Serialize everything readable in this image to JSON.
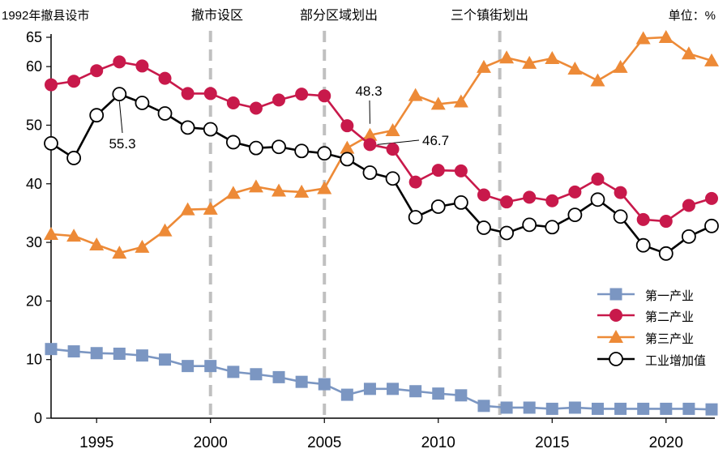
{
  "chart_data": {
    "type": "line",
    "title": "",
    "top_left_label": "1992年撤县设市",
    "unit_label": "单位：%",
    "xlabel": "",
    "ylabel": "",
    "xlim": [
      1993,
      2022
    ],
    "ylim": [
      0,
      65
    ],
    "x_ticks": [
      1995,
      2000,
      2005,
      2010,
      2015,
      2020
    ],
    "y_ticks": [
      0,
      10,
      20,
      30,
      40,
      50,
      60,
      65
    ],
    "grid": false,
    "legend_position": "bottom-right",
    "x": [
      1993,
      1994,
      1995,
      1996,
      1997,
      1998,
      1999,
      2000,
      2001,
      2002,
      2003,
      2004,
      2005,
      2006,
      2007,
      2008,
      2009,
      2010,
      2011,
      2012,
      2013,
      2014,
      2015,
      2016,
      2017,
      2018,
      2019,
      2020,
      2021,
      2022
    ],
    "series": [
      {
        "name": "第一产业",
        "color": "#7b96c2",
        "marker": "square",
        "values": [
          11.8,
          11.4,
          11.1,
          11.0,
          10.7,
          10.0,
          8.9,
          8.9,
          7.9,
          7.5,
          7.0,
          6.2,
          5.8,
          4.0,
          5.0,
          5.0,
          4.6,
          4.2,
          3.9,
          2.1,
          1.8,
          1.8,
          1.6,
          1.8,
          1.6,
          1.6,
          1.6,
          1.6,
          1.6,
          1.5
        ]
      },
      {
        "name": "第二产业",
        "color": "#c8194b",
        "marker": "circle",
        "values": [
          56.9,
          57.5,
          59.3,
          60.8,
          60.1,
          58.0,
          55.4,
          55.4,
          53.8,
          52.9,
          54.3,
          55.3,
          55.0,
          49.9,
          46.7,
          45.9,
          40.3,
          42.3,
          42.2,
          38.1,
          36.9,
          37.7,
          37.1,
          38.6,
          40.8,
          38.5,
          33.9,
          33.6,
          36.3,
          37.5
        ]
      },
      {
        "name": "第三产业",
        "color": "#ed8a37",
        "marker": "triangle",
        "values": [
          31.4,
          31.1,
          29.6,
          28.2,
          29.2,
          32.0,
          35.6,
          35.7,
          38.4,
          39.5,
          38.8,
          38.6,
          39.2,
          46.1,
          48.3,
          49.1,
          55.1,
          53.6,
          54.0,
          59.9,
          61.5,
          60.6,
          61.4,
          59.6,
          57.6,
          59.9,
          64.8,
          65.0,
          62.2,
          61.0
        ]
      },
      {
        "name": "工业增加值",
        "color": "#000000",
        "marker": "open-circle",
        "values": [
          46.9,
          44.4,
          51.7,
          55.3,
          53.8,
          52.0,
          49.6,
          49.3,
          47.1,
          46.1,
          46.3,
          45.6,
          45.2,
          44.2,
          41.9,
          40.9,
          34.3,
          36.1,
          36.8,
          32.5,
          31.6,
          33.0,
          32.6,
          34.7,
          37.3,
          34.4,
          29.5,
          28.1,
          31.0,
          32.8
        ]
      }
    ],
    "eras": [
      {
        "year": 2000,
        "label": "撤市设区"
      },
      {
        "year": 2005,
        "label": "部分区域划出"
      },
      {
        "year": 2012.7,
        "label": "三个镇街划出"
      }
    ],
    "annotations": [
      {
        "text": "55.3",
        "x": 1996,
        "y": 55.3
      },
      {
        "text": "48.3",
        "x": 2007,
        "y": 48.3
      },
      {
        "text": "46.7",
        "x": 2007,
        "y": 46.7
      }
    ]
  }
}
